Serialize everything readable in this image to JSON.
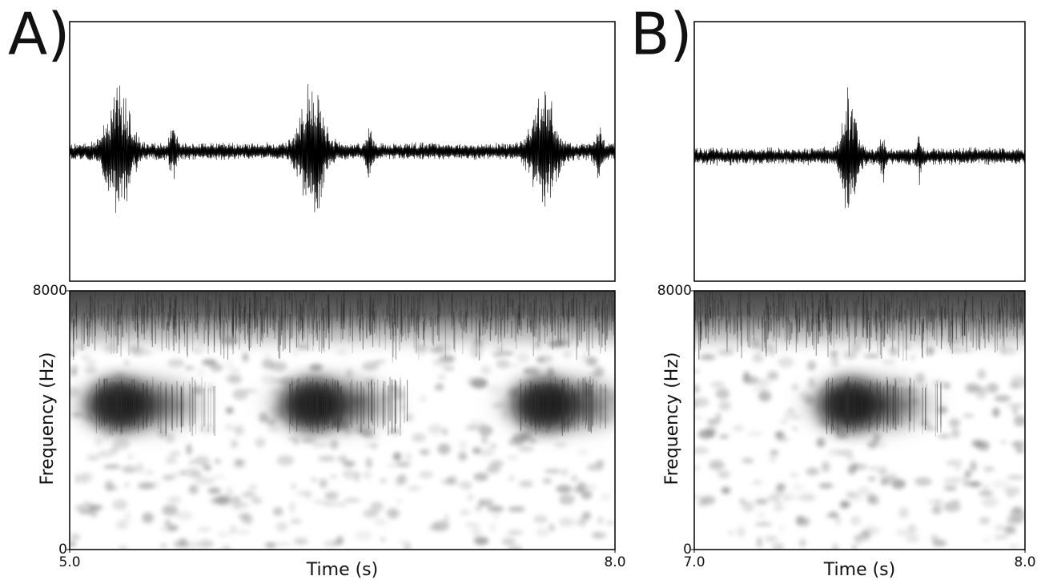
{
  "chart_data": [
    {
      "type": "spectrogram",
      "panel_label": "A)",
      "xlabel": "Time (s)",
      "ylabel": "Frequency (Hz)",
      "xlim": [
        5,
        8
      ],
      "xticks": [
        {
          "value": 5,
          "label": "5.0"
        },
        {
          "value": 8,
          "label": "8.0"
        }
      ],
      "ylim": [
        0,
        8000
      ],
      "yticks": [
        0,
        8000
      ]
    },
    {
      "type": "spectrogram",
      "panel_label": "B)",
      "xlabel": "Time (s)",
      "ylabel": "Frequency (Hz)",
      "xlim": [
        7,
        8
      ],
      "xticks": [
        {
          "value": 7,
          "label": "7.0"
        },
        {
          "value": 8,
          "label": "8.0"
        }
      ],
      "ylim": [
        0,
        8000
      ],
      "yticks": [
        0,
        8000
      ]
    }
  ]
}
